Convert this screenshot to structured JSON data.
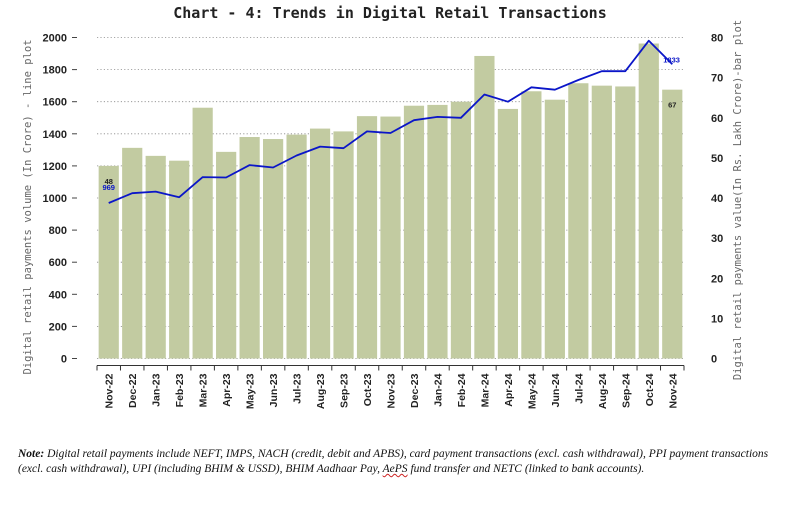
{
  "chart_data": {
    "type": "bar",
    "title": "Chart - 4: Trends in Digital Retail Transactions",
    "categories": [
      "Nov-22",
      "Dec-22",
      "Jan-23",
      "Feb-23",
      "Mar-23",
      "Apr-23",
      "May-23",
      "Jun-23",
      "Jul-23",
      "Aug-23",
      "Sep-23",
      "Oct-23",
      "Nov-23",
      "Dec-23",
      "Jan-24",
      "Feb-24",
      "Mar-24",
      "Apr-24",
      "May-24",
      "Jun-24",
      "Jul-24",
      "Aug-24",
      "Sep-24",
      "Oct-24",
      "Nov-24"
    ],
    "series": [
      {
        "kind": "bar",
        "axis": "right",
        "color": "#c2cba1",
        "values": [
          48,
          52.5,
          50.5,
          49.3,
          62.5,
          51.5,
          55.2,
          54.7,
          55.8,
          57.3,
          56.6,
          60.4,
          60.3,
          63,
          63.2,
          64,
          75.4,
          62.2,
          66.6,
          64.5,
          68.6,
          68,
          67.8,
          78.5,
          67
        ],
        "data_labels": [
          {
            "index": 0,
            "text": "48"
          },
          {
            "index": 24,
            "text": "67"
          }
        ]
      },
      {
        "kind": "line",
        "axis": "left",
        "color": "#0b16c8",
        "values": [
          969,
          1030,
          1040,
          1005,
          1130,
          1128,
          1205,
          1190,
          1265,
          1320,
          1310,
          1415,
          1405,
          1485,
          1505,
          1500,
          1645,
          1600,
          1690,
          1675,
          1735,
          1790,
          1790,
          1980,
          1833
        ],
        "data_labels": [
          {
            "index": 0,
            "text": "969"
          },
          {
            "index": 24,
            "text": "1833"
          }
        ]
      }
    ],
    "left_axis": {
      "label": "Digital retail payments volume (In Crore) - line plot",
      "ylim": [
        0,
        2000
      ],
      "ticks": [
        "0",
        "200",
        "400",
        "600",
        "800",
        "1000",
        "1200",
        "1400",
        "1600",
        "1800",
        "2000"
      ]
    },
    "right_axis": {
      "label": "Digital retail payments value(In Rs. Lakh Crore)-bar plot",
      "ylim": [
        0,
        80
      ],
      "ticks": [
        "0",
        "10",
        "20",
        "30",
        "40",
        "50",
        "60",
        "70",
        "80"
      ]
    },
    "grid": "horizontal dotted"
  },
  "note": {
    "label": "Note:",
    "text_before": " Digital retail payments include NEFT, IMPS, NACH (credit, debit and APBS), card payment transactions (excl. cash withdrawal), PPI payment transactions (excl. cash withdrawal), UPI (including BHIM & USSD), BHIM Aadhaar Pay, ",
    "flagged_word": "AePS",
    "text_after": " fund transfer and NETC (linked to bank accounts)."
  }
}
